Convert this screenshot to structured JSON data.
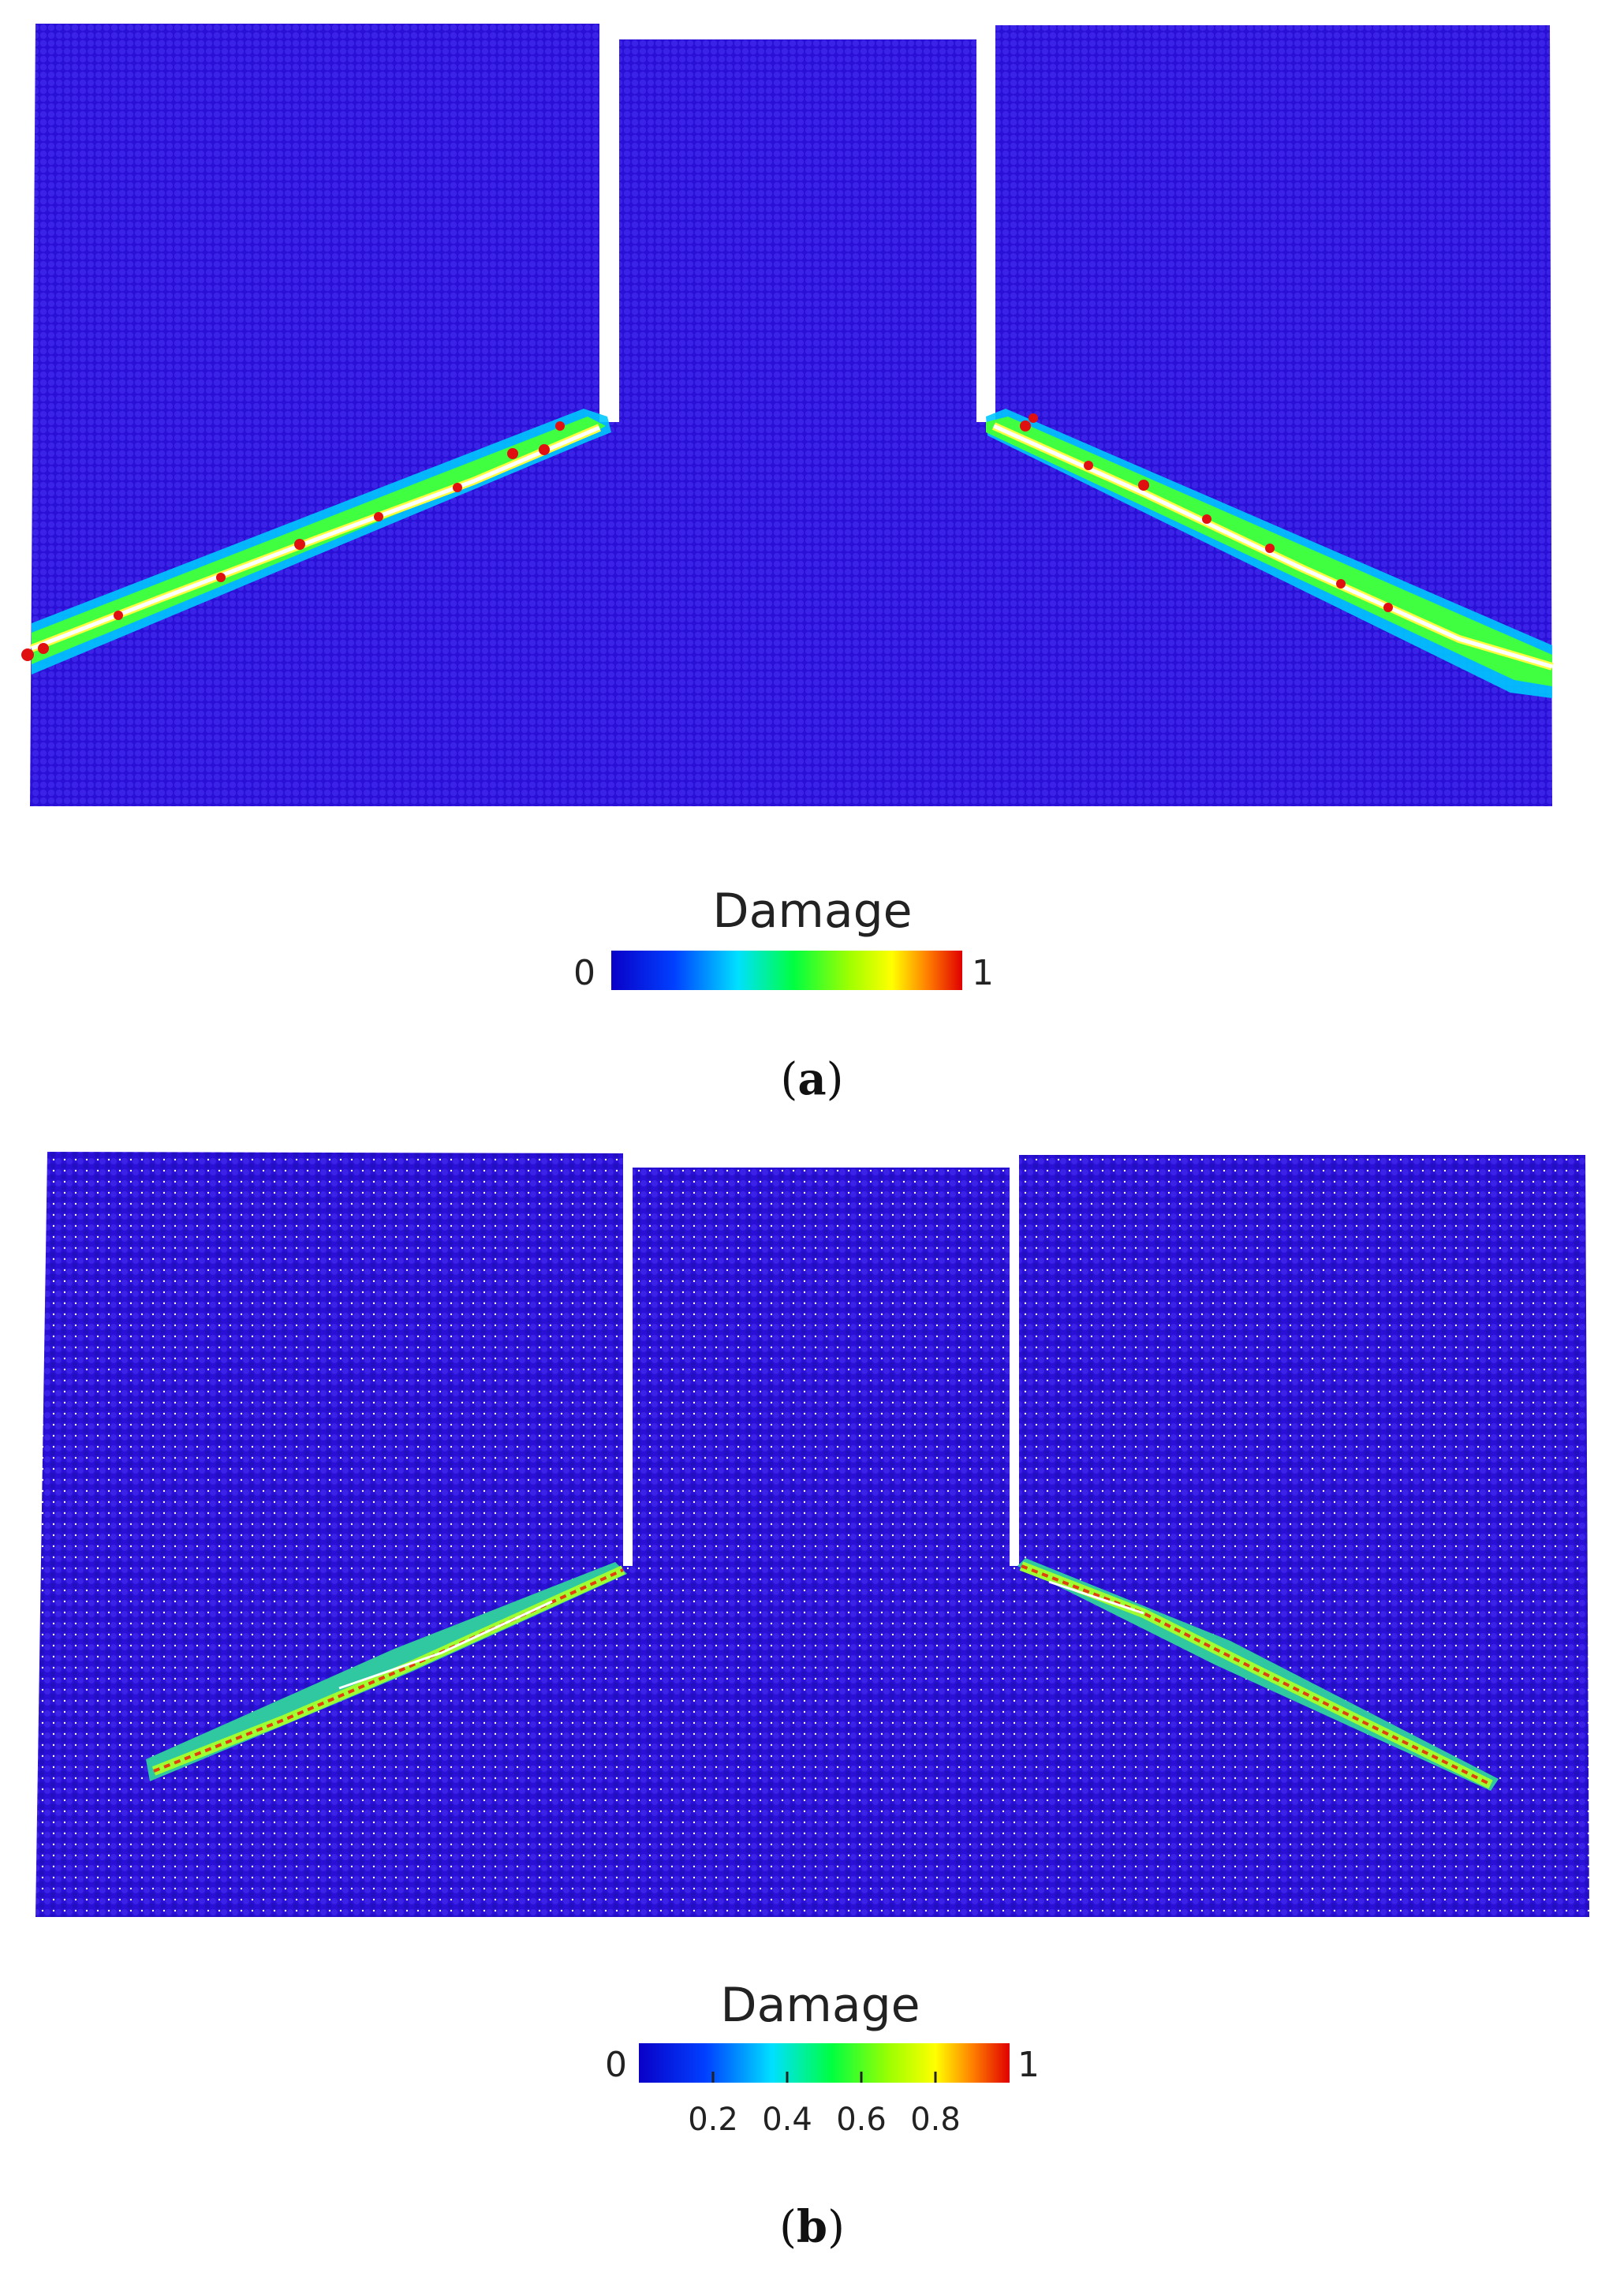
{
  "figure": {
    "panels": [
      {
        "id": "a",
        "caption_letter": "a",
        "caption_open": "(",
        "caption_close": ")",
        "colorbar": {
          "title": "Damage",
          "min_label": "0",
          "max_label": "1",
          "ticks": []
        }
      },
      {
        "id": "b",
        "caption_letter": "b",
        "caption_open": "(",
        "caption_close": ")",
        "colorbar": {
          "title": "Damage",
          "min_label": "0",
          "max_label": "1",
          "ticks": [
            "0.2",
            "0.4",
            "0.6",
            "0.8"
          ]
        }
      }
    ],
    "colors": {
      "particle_blue": "#2a0fd6",
      "colormap": [
        "#0a00c8",
        "#0040ff",
        "#00e0ff",
        "#00ff40",
        "#a0ff00",
        "#ffff00",
        "#ff8000",
        "#e00000"
      ]
    }
  }
}
